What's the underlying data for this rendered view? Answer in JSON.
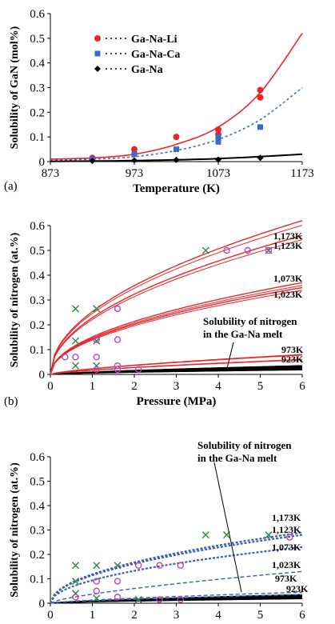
{
  "chart_data": [
    {
      "type": "scatter",
      "panel_label": "(a)",
      "xlabel": "Temperature (K)",
      "ylabel": "Solubility of GaN (mol%)",
      "xlim": [
        873,
        1173
      ],
      "ylim": [
        0,
        0.6
      ],
      "xticks": [
        873,
        973,
        1073,
        1173
      ],
      "yticks": [
        0,
        0.1,
        0.2,
        0.3,
        0.4,
        0.5,
        0.6
      ],
      "legend_position": "top-left",
      "series": [
        {
          "name": "Ga-Na-Li",
          "color": "#e8262a",
          "marker": "circle",
          "points": [
            [
              923,
              0.015
            ],
            [
              973,
              0.05
            ],
            [
              1023,
              0.1
            ],
            [
              1073,
              0.13
            ],
            [
              1073,
              0.11
            ],
            [
              1123,
              0.29
            ],
            [
              1123,
              0.26
            ]
          ],
          "fit": [
            [
              873,
              0.01
            ],
            [
              923,
              0.015
            ],
            [
              973,
              0.03
            ],
            [
              1023,
              0.07
            ],
            [
              1073,
              0.14
            ],
            [
              1123,
              0.28
            ],
            [
              1173,
              0.52
            ]
          ]
        },
        {
          "name": "Ga-Na-Ca",
          "color": "#3a6bc4",
          "marker": "square",
          "points": [
            [
              923,
              0.01
            ],
            [
              973,
              0.03
            ],
            [
              1023,
              0.05
            ],
            [
              1073,
              0.08
            ],
            [
              1073,
              0.1
            ],
            [
              1123,
              0.14
            ]
          ],
          "fit": [
            [
              873,
              0.005
            ],
            [
              923,
              0.01
            ],
            [
              973,
              0.02
            ],
            [
              1023,
              0.045
            ],
            [
              1073,
              0.09
            ],
            [
              1123,
              0.17
            ],
            [
              1173,
              0.3
            ]
          ]
        },
        {
          "name": "Ga-Na",
          "color": "#000000",
          "marker": "diamond",
          "points": [
            [
              923,
              0.003
            ],
            [
              973,
              0.005
            ],
            [
              1023,
              0.007
            ],
            [
              1073,
              0.008
            ],
            [
              1123,
              0.015
            ]
          ],
          "fit": [
            [
              873,
              0.001
            ],
            [
              973,
              0.004
            ],
            [
              1073,
              0.012
            ],
            [
              1173,
              0.03
            ]
          ]
        }
      ]
    },
    {
      "type": "line",
      "panel_label": "(b)",
      "xlabel": "Pressure (MPa)",
      "ylabel": "Solubility of nitrogen (at.%)",
      "xlim": [
        0,
        6
      ],
      "ylim": [
        0,
        0.6
      ],
      "xticks": [
        0,
        1,
        2,
        3,
        4,
        5,
        6
      ],
      "yticks": [
        0,
        0.1,
        0.2,
        0.3,
        0.4,
        0.5,
        0.6
      ],
      "annotation": [
        "Solubility of nitrogen",
        "in the Ga-Na melt"
      ],
      "curves": [
        {
          "label": "1,173K",
          "value_at_6MPa": 0.62
        },
        {
          "label": "1,123K",
          "value_at_6MPa": 0.56
        },
        {
          "label": "1,073K",
          "value_at_6MPa": 0.37
        },
        {
          "label": "1,023K",
          "value_at_6MPa": 0.35
        },
        {
          "label": "973K",
          "value_at_6MPa": 0.08
        },
        {
          "label": "923K",
          "value_at_6MPa": 0.06
        }
      ],
      "markers_x": [
        [
          0.6,
          0.265
        ],
        [
          1.1,
          0.265
        ],
        [
          0.6,
          0.135
        ],
        [
          1.1,
          0.135
        ],
        [
          0.6,
          0.035
        ],
        [
          1.1,
          0.035
        ],
        [
          3.7,
          0.5
        ],
        [
          5.2,
          0.5
        ]
      ],
      "markers_o": [
        [
          0.35,
          0.07
        ],
        [
          0.6,
          0.07
        ],
        [
          1.1,
          0.07
        ],
        [
          1.6,
          0.14
        ],
        [
          1.1,
          0.14
        ],
        [
          1.6,
          0.265
        ],
        [
          1.1,
          0.02
        ],
        [
          1.6,
          0.02
        ],
        [
          1.6,
          0.035
        ],
        [
          2.1,
          0.02
        ],
        [
          4.2,
          0.5
        ],
        [
          4.7,
          0.5
        ],
        [
          5.2,
          0.5
        ]
      ]
    },
    {
      "type": "line",
      "panel_label": "",
      "xlabel": "",
      "ylabel": "Solubility of nitrogen (at.%)",
      "xlim": [
        0,
        6
      ],
      "ylim": [
        0,
        0.6
      ],
      "xticks": [
        0,
        1,
        2,
        3,
        4,
        5,
        6
      ],
      "yticks": [
        0,
        0.1,
        0.2,
        0.3,
        0.4,
        0.5,
        0.6
      ],
      "annotation": [
        "Solubility of nitrogen",
        "in the Ga-Na melt"
      ],
      "curves": [
        {
          "label": "1,173K",
          "value_at_6MPa": 0.29
        },
        {
          "label": "1,123K",
          "value_at_6MPa": 0.28
        },
        {
          "label": "1,073K",
          "value_at_6MPa": 0.23
        },
        {
          "label": "1,023K",
          "value_at_6MPa": 0.13
        },
        {
          "label": "973K",
          "value_at_6MPa": 0.045
        },
        {
          "label": "923K",
          "value_at_6MPa": 0.035
        }
      ],
      "markers_x": [
        [
          0.6,
          0.155
        ],
        [
          1.1,
          0.155
        ],
        [
          1.6,
          0.155
        ],
        [
          0.6,
          0.09
        ],
        [
          0.6,
          0.04
        ],
        [
          1.1,
          0.02
        ],
        [
          2.1,
          0.015
        ],
        [
          3.7,
          0.28
        ],
        [
          4.2,
          0.28
        ],
        [
          5.2,
          0.28
        ]
      ],
      "markers_o": [
        [
          0.6,
          0.025
        ],
        [
          1.1,
          0.09
        ],
        [
          1.6,
          0.09
        ],
        [
          1.1,
          0.05
        ],
        [
          1.6,
          0.025
        ],
        [
          2.1,
          0.155
        ],
        [
          2.6,
          0.155
        ],
        [
          3.1,
          0.155
        ],
        [
          2.6,
          0.015
        ],
        [
          3.1,
          0.015
        ],
        [
          5.7,
          0.27
        ]
      ]
    }
  ]
}
